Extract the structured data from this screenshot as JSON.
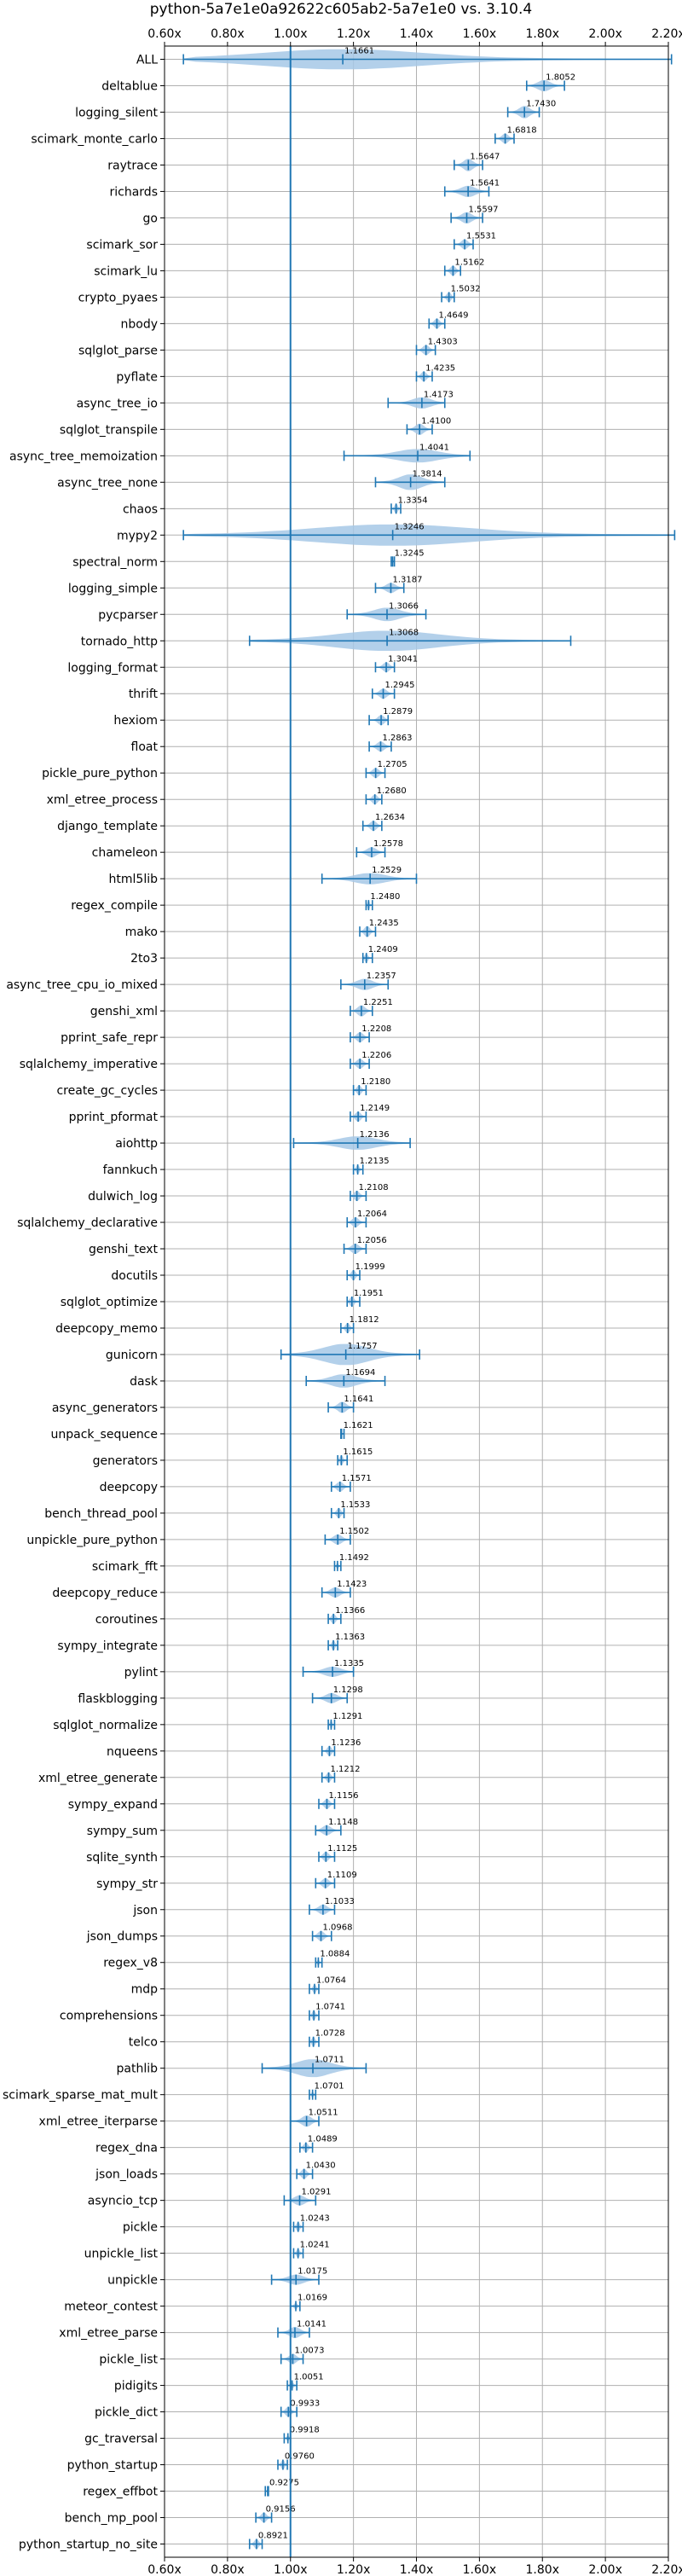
{
  "chart_data": {
    "type": "violin",
    "title": "python-5a7e1e0a92622c605ab2-5a7e1e0 vs. 3.10.4",
    "xlabel": "",
    "ylabel": "",
    "xlim": [
      0.6,
      2.2
    ],
    "x_ticks": [
      "0.60x",
      "0.80x",
      "1.00x",
      "1.20x",
      "1.40x",
      "1.60x",
      "1.80x",
      "2.00x",
      "2.20x"
    ],
    "reference_line": 1.0,
    "grid": true,
    "orientation": "horizontal",
    "categories": [
      "ALL",
      "deltablue",
      "logging_silent",
      "scimark_monte_carlo",
      "raytrace",
      "richards",
      "go",
      "scimark_sor",
      "scimark_lu",
      "crypto_pyaes",
      "nbody",
      "sqlglot_parse",
      "pyflate",
      "async_tree_io",
      "sqlglot_transpile",
      "async_tree_memoization",
      "async_tree_none",
      "chaos",
      "mypy2",
      "spectral_norm",
      "logging_simple",
      "pycparser",
      "tornado_http",
      "logging_format",
      "thrift",
      "hexiom",
      "float",
      "pickle_pure_python",
      "xml_etree_process",
      "django_template",
      "chameleon",
      "html5lib",
      "regex_compile",
      "mako",
      "2to3",
      "async_tree_cpu_io_mixed",
      "genshi_xml",
      "pprint_safe_repr",
      "sqlalchemy_imperative",
      "create_gc_cycles",
      "pprint_pformat",
      "aiohttp",
      "fannkuch",
      "dulwich_log",
      "sqlalchemy_declarative",
      "genshi_text",
      "docutils",
      "sqlglot_optimize",
      "deepcopy_memo",
      "gunicorn",
      "dask",
      "async_generators",
      "unpack_sequence",
      "generators",
      "deepcopy",
      "bench_thread_pool",
      "unpickle_pure_python",
      "scimark_fft",
      "deepcopy_reduce",
      "coroutines",
      "sympy_integrate",
      "pylint",
      "flaskblogging",
      "sqlglot_normalize",
      "nqueens",
      "xml_etree_generate",
      "sympy_expand",
      "sympy_sum",
      "sqlite_synth",
      "sympy_str",
      "json",
      "json_dumps",
      "regex_v8",
      "mdp",
      "comprehensions",
      "telco",
      "pathlib",
      "scimark_sparse_mat_mult",
      "xml_etree_iterparse",
      "regex_dna",
      "json_loads",
      "asyncio_tcp",
      "pickle",
      "unpickle_list",
      "unpickle",
      "meteor_contest",
      "xml_etree_parse",
      "pickle_list",
      "pidigits",
      "pickle_dict",
      "gc_traversal",
      "python_startup",
      "regex_effbot",
      "bench_mp_pool",
      "python_startup_no_site"
    ],
    "labels": [
      "1.1661",
      "1.8052",
      "1.7430",
      "1.6818",
      "1.5647",
      "1.5641",
      "1.5597",
      "1.5531",
      "1.5162",
      "1.5032",
      "1.4649",
      "1.4303",
      "1.4235",
      "1.4173",
      "1.4100",
      "1.4041",
      "1.3814",
      "1.3354",
      "1.3246",
      "1.3245",
      "1.3187",
      "1.3066",
      "1.3068",
      "1.3041",
      "1.2945",
      "1.2879",
      "1.2863",
      "1.2705",
      "1.2680",
      "1.2634",
      "1.2578",
      "1.2529",
      "1.2480",
      "1.2435",
      "1.2409",
      "1.2357",
      "1.2251",
      "1.2208",
      "1.2206",
      "1.2180",
      "1.2149",
      "1.2136",
      "1.2135",
      "1.2108",
      "1.2064",
      "1.2056",
      "1.1999",
      "1.1951",
      "1.1812",
      "1.1757",
      "1.1694",
      "1.1641",
      "1.1621",
      "1.1615",
      "1.1571",
      "1.1533",
      "1.1502",
      "1.1492",
      "1.1423",
      "1.1366",
      "1.1363",
      "1.1335",
      "1.1298",
      "1.1291",
      "1.1236",
      "1.1212",
      "1.1156",
      "1.1148",
      "1.1125",
      "1.1109",
      "1.1033",
      "1.0968",
      "1.0884",
      "1.0764",
      "1.0741",
      "1.0728",
      "1.0711",
      "1.0701",
      "1.0511",
      "1.0489",
      "1.0430",
      "1.0291",
      "1.0243",
      "1.0241",
      "1.0175",
      "1.0169",
      "1.0141",
      "1.0073",
      "1.0051",
      "0.9933",
      "0.9918",
      "0.9760",
      "0.9275",
      "0.9156",
      "0.8921"
    ],
    "values": [
      1.1661,
      1.8052,
      1.743,
      1.6818,
      1.5647,
      1.5641,
      1.5597,
      1.5531,
      1.5162,
      1.5032,
      1.4649,
      1.4303,
      1.4235,
      1.4173,
      1.41,
      1.4041,
      1.3814,
      1.3354,
      1.3246,
      1.3245,
      1.3187,
      1.3066,
      1.3068,
      1.3041,
      1.2945,
      1.2879,
      1.2863,
      1.2705,
      1.268,
      1.2634,
      1.2578,
      1.2529,
      1.248,
      1.2435,
      1.2409,
      1.2357,
      1.2251,
      1.2208,
      1.2206,
      1.218,
      1.2149,
      1.2136,
      1.2135,
      1.2108,
      1.2064,
      1.2056,
      1.1999,
      1.1951,
      1.1812,
      1.1757,
      1.1694,
      1.1641,
      1.1621,
      1.1615,
      1.1571,
      1.1533,
      1.1502,
      1.1492,
      1.1423,
      1.1366,
      1.1363,
      1.1335,
      1.1298,
      1.1291,
      1.1236,
      1.1212,
      1.1156,
      1.1148,
      1.1125,
      1.1109,
      1.1033,
      1.0968,
      1.0884,
      1.0764,
      1.0741,
      1.0728,
      1.0711,
      1.0701,
      1.0511,
      1.0489,
      1.043,
      1.0291,
      1.0243,
      1.0241,
      1.0175,
      1.0169,
      1.0141,
      1.0073,
      1.0051,
      0.9933,
      0.9918,
      0.976,
      0.9275,
      0.9156,
      0.8921
    ],
    "ranges": [
      [
        0.66,
        2.21
      ],
      [
        1.75,
        1.87
      ],
      [
        1.69,
        1.79
      ],
      [
        1.65,
        1.71
      ],
      [
        1.52,
        1.61
      ],
      [
        1.49,
        1.63
      ],
      [
        1.51,
        1.61
      ],
      [
        1.52,
        1.58
      ],
      [
        1.49,
        1.54
      ],
      [
        1.48,
        1.52
      ],
      [
        1.44,
        1.49
      ],
      [
        1.4,
        1.46
      ],
      [
        1.4,
        1.45
      ],
      [
        1.31,
        1.49
      ],
      [
        1.37,
        1.45
      ],
      [
        1.17,
        1.57
      ],
      [
        1.27,
        1.49
      ],
      [
        1.32,
        1.35
      ],
      [
        0.66,
        2.22
      ],
      [
        1.32,
        1.33
      ],
      [
        1.27,
        1.36
      ],
      [
        1.18,
        1.43
      ],
      [
        0.87,
        1.89
      ],
      [
        1.27,
        1.33
      ],
      [
        1.26,
        1.33
      ],
      [
        1.25,
        1.31
      ],
      [
        1.25,
        1.32
      ],
      [
        1.24,
        1.3
      ],
      [
        1.24,
        1.29
      ],
      [
        1.23,
        1.29
      ],
      [
        1.21,
        1.3
      ],
      [
        1.1,
        1.4
      ],
      [
        1.24,
        1.26
      ],
      [
        1.22,
        1.27
      ],
      [
        1.23,
        1.26
      ],
      [
        1.16,
        1.31
      ],
      [
        1.19,
        1.26
      ],
      [
        1.19,
        1.25
      ],
      [
        1.19,
        1.25
      ],
      [
        1.2,
        1.24
      ],
      [
        1.19,
        1.24
      ],
      [
        1.01,
        1.38
      ],
      [
        1.2,
        1.23
      ],
      [
        1.19,
        1.24
      ],
      [
        1.18,
        1.24
      ],
      [
        1.17,
        1.24
      ],
      [
        1.18,
        1.22
      ],
      [
        1.18,
        1.22
      ],
      [
        1.16,
        1.2
      ],
      [
        0.97,
        1.41
      ],
      [
        1.05,
        1.3
      ],
      [
        1.12,
        1.2
      ],
      [
        1.16,
        1.17
      ],
      [
        1.15,
        1.18
      ],
      [
        1.13,
        1.19
      ],
      [
        1.13,
        1.17
      ],
      [
        1.11,
        1.19
      ],
      [
        1.14,
        1.16
      ],
      [
        1.1,
        1.19
      ],
      [
        1.12,
        1.16
      ],
      [
        1.12,
        1.15
      ],
      [
        1.04,
        1.2
      ],
      [
        1.07,
        1.18
      ],
      [
        1.12,
        1.14
      ],
      [
        1.1,
        1.14
      ],
      [
        1.1,
        1.14
      ],
      [
        1.09,
        1.14
      ],
      [
        1.08,
        1.16
      ],
      [
        1.09,
        1.14
      ],
      [
        1.08,
        1.14
      ],
      [
        1.06,
        1.14
      ],
      [
        1.07,
        1.13
      ],
      [
        1.08,
        1.1
      ],
      [
        1.06,
        1.09
      ],
      [
        1.06,
        1.09
      ],
      [
        1.06,
        1.09
      ],
      [
        0.91,
        1.24
      ],
      [
        1.06,
        1.08
      ],
      [
        1.0,
        1.09
      ],
      [
        1.03,
        1.07
      ],
      [
        1.02,
        1.07
      ],
      [
        0.98,
        1.08
      ],
      [
        1.01,
        1.04
      ],
      [
        1.01,
        1.04
      ],
      [
        0.94,
        1.09
      ],
      [
        1.0,
        1.03
      ],
      [
        0.96,
        1.06
      ],
      [
        0.97,
        1.04
      ],
      [
        0.99,
        1.02
      ],
      [
        0.97,
        1.02
      ],
      [
        0.98,
        1.0
      ],
      [
        0.96,
        0.99
      ],
      [
        0.92,
        0.93
      ],
      [
        0.89,
        0.94
      ],
      [
        0.87,
        0.91
      ]
    ],
    "widths": [
      0.9,
      0.5,
      0.55,
      0.45,
      0.55,
      0.5,
      0.5,
      0.45,
      0.45,
      0.45,
      0.45,
      0.45,
      0.45,
      0.5,
      0.5,
      0.6,
      0.7,
      0.45,
      0.95,
      0.3,
      0.45,
      0.6,
      0.9,
      0.45,
      0.45,
      0.45,
      0.45,
      0.45,
      0.45,
      0.45,
      0.45,
      0.5,
      0.45,
      0.5,
      0.4,
      0.5,
      0.5,
      0.45,
      0.45,
      0.45,
      0.45,
      0.6,
      0.4,
      0.45,
      0.45,
      0.45,
      0.45,
      0.45,
      0.45,
      0.95,
      0.6,
      0.5,
      0.3,
      0.45,
      0.45,
      0.45,
      0.45,
      0.3,
      0.45,
      0.45,
      0.45,
      0.45,
      0.45,
      0.4,
      0.45,
      0.45,
      0.45,
      0.45,
      0.45,
      0.45,
      0.45,
      0.45,
      0.3,
      0.4,
      0.45,
      0.45,
      0.8,
      0.3,
      0.5,
      0.45,
      0.45,
      0.45,
      0.45,
      0.4,
      0.45,
      0.3,
      0.5,
      0.45,
      0.3,
      0.45,
      0.3,
      0.45,
      0.3,
      0.45,
      0.45
    ],
    "colors": {
      "violin_fill": "#a6c8e6",
      "line": "#1f77b4",
      "grid": "#b0b0b0",
      "axis": "#000000"
    }
  }
}
